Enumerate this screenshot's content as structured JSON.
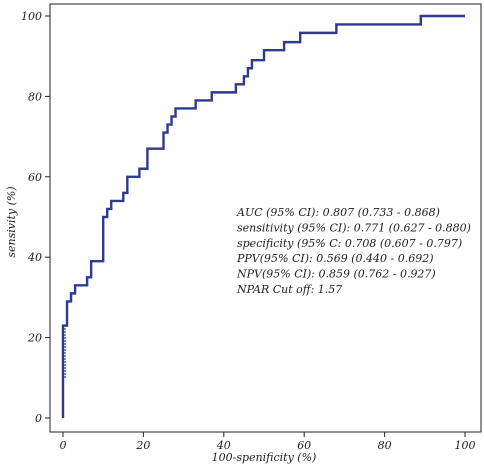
{
  "chart_data": {
    "type": "line",
    "title": "",
    "xlabel": "100-spenificity (%)",
    "ylabel": "sensivity (%)",
    "xlim": [
      0,
      100
    ],
    "ylim": [
      0,
      100
    ],
    "xticks": [
      0,
      20,
      40,
      60,
      80,
      100
    ],
    "yticks": [
      0,
      20,
      40,
      60,
      80,
      100
    ],
    "grid": false,
    "series": [
      {
        "color": "#2e3a8c",
        "points": [
          [
            0,
            0
          ],
          [
            0,
            10
          ],
          [
            0,
            20
          ],
          [
            0,
            23
          ],
          [
            1,
            23
          ],
          [
            1,
            29
          ],
          [
            2,
            29
          ],
          [
            2,
            31
          ],
          [
            3,
            31
          ],
          [
            3,
            33
          ],
          [
            6,
            33
          ],
          [
            6,
            35
          ],
          [
            7,
            35
          ],
          [
            7,
            39
          ],
          [
            10,
            39
          ],
          [
            10,
            50
          ],
          [
            11,
            50
          ],
          [
            11,
            52
          ],
          [
            12,
            52
          ],
          [
            12,
            54
          ],
          [
            15,
            54
          ],
          [
            15,
            56
          ],
          [
            16,
            56
          ],
          [
            16,
            60
          ],
          [
            19,
            60
          ],
          [
            19,
            62
          ],
          [
            21,
            62
          ],
          [
            21,
            67
          ],
          [
            25,
            67
          ],
          [
            25,
            71
          ],
          [
            26,
            71
          ],
          [
            26,
            73
          ],
          [
            27,
            73
          ],
          [
            27,
            75
          ],
          [
            28,
            75
          ],
          [
            28,
            77
          ],
          [
            33,
            77
          ],
          [
            33,
            79
          ],
          [
            37,
            79
          ],
          [
            37,
            81
          ],
          [
            43,
            81
          ],
          [
            43,
            83
          ],
          [
            45,
            83
          ],
          [
            45,
            85
          ],
          [
            46,
            85
          ],
          [
            46,
            87
          ],
          [
            47,
            87
          ],
          [
            47,
            89
          ],
          [
            50,
            89
          ],
          [
            50,
            91.5
          ],
          [
            55,
            91.5
          ],
          [
            55,
            93.5
          ],
          [
            59,
            93.5
          ],
          [
            59,
            95.8
          ],
          [
            68,
            95.8
          ],
          [
            68,
            97.9
          ],
          [
            89,
            97.9
          ],
          [
            89,
            100
          ],
          [
            100,
            100
          ]
        ]
      }
    ],
    "annotations": [
      "AUC (95% CI): 0.807 (0.733 - 0.868)",
      "sensitivity (95% CI): 0.771 (0.627 - 0.880)",
      "specificity (95% C: 0.708 (0.607 - 0.797)",
      "PPV(95% CI): 0.569 (0.440 - 0.692)",
      "NPV(95% CI): 0.859 (0.762 - 0.927)",
      "NPAR Cut off: 1.57"
    ]
  }
}
